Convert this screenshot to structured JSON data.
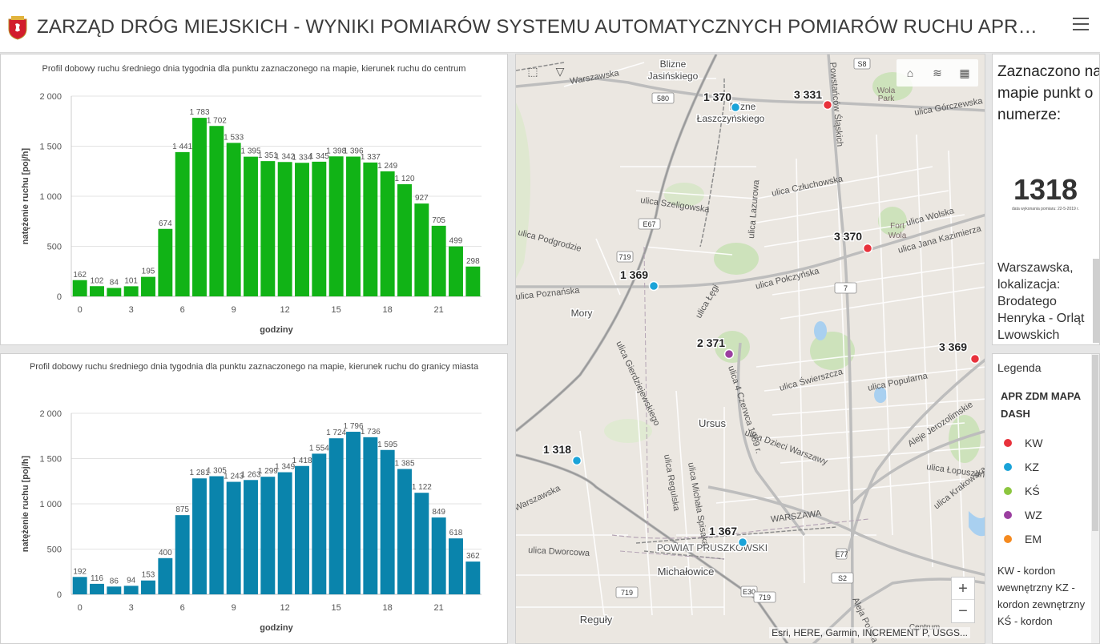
{
  "header": {
    "title": "ZARZĄD DRÓG MIEJSKICH - WYNIKI POMIARÓW SYSTEMU AUTOMATYCZNYCH POMIARÓW RUCHU APR ZDM MAPA DASH"
  },
  "colors": {
    "chart1_bar": "#11b316",
    "chart2_bar": "#0a84ac",
    "KW": "#e8323c",
    "KZ": "#1aa3d8",
    "KS": "#8cc63f",
    "WZ": "#9b3fa0",
    "EM": "#f58a1f"
  },
  "chart_data": [
    {
      "type": "bar",
      "title": "Profil dobowy ruchu średniego dnia tygodnia dla punktu zaznaczonego na mapie, kierunek ruchu do centrum",
      "xlabel": "godziny",
      "ylabel": "natężenie ruchu [poj/h]",
      "ylim": [
        0,
        2000
      ],
      "yticks": [
        0,
        500,
        1000,
        1500,
        2000
      ],
      "ytick_labels": [
        "0",
        "500",
        "1 000",
        "1 500",
        "2 000"
      ],
      "xticks": [
        "0",
        "3",
        "6",
        "9",
        "12",
        "15",
        "18",
        "21"
      ],
      "categories": [
        0,
        1,
        2,
        3,
        4,
        5,
        6,
        7,
        8,
        9,
        10,
        11,
        12,
        13,
        14,
        15,
        16,
        17,
        18,
        19,
        20,
        21,
        22,
        23
      ],
      "values": [
        162,
        102,
        84,
        101,
        195,
        674,
        1441,
        1783,
        1702,
        1533,
        1395,
        1351,
        1342,
        1334,
        1345,
        1398,
        1396,
        1337,
        1249,
        1120,
        927,
        705,
        499,
        298
      ],
      "value_labels": [
        "162",
        "102",
        "84",
        "101",
        "195",
        "674",
        "1 441",
        "1 783",
        "1 702",
        "1 533",
        "1 395",
        "1 351",
        "1 342",
        "1 334",
        "1 345",
        "1 398",
        "1 396",
        "1 337",
        "1 249",
        "1 120",
        "927",
        "705",
        "499",
        "298"
      ],
      "grid": true
    },
    {
      "type": "bar",
      "title": "Profil dobowy ruchu średniego dnia tygodnia dla punktu zaznaczonego na mapie, kierunek ruchu do granicy miasta",
      "xlabel": "godziny",
      "ylabel": "natężenie ruchu [poj/h]",
      "ylim": [
        0,
        2000
      ],
      "yticks": [
        0,
        500,
        1000,
        1500,
        2000
      ],
      "ytick_labels": [
        "0",
        "500",
        "1 000",
        "1 500",
        "2 000"
      ],
      "xticks": [
        "0",
        "3",
        "6",
        "9",
        "12",
        "15",
        "18",
        "21"
      ],
      "categories": [
        0,
        1,
        2,
        3,
        4,
        5,
        6,
        7,
        8,
        9,
        10,
        11,
        12,
        13,
        14,
        15,
        16,
        17,
        18,
        19,
        20,
        21,
        22,
        23
      ],
      "values": [
        192,
        116,
        86,
        94,
        153,
        400,
        875,
        1281,
        1305,
        1243,
        1263,
        1299,
        1349,
        1418,
        1554,
        1724,
        1796,
        1736,
        1595,
        1385,
        1122,
        849,
        618,
        362
      ],
      "value_labels": [
        "192",
        "116",
        "86",
        "94",
        "153",
        "400",
        "875",
        "1 281",
        "1 305",
        "1 243",
        "1 263",
        "1 299",
        "1 349",
        "1 418",
        "1 554",
        "1 724",
        "1 796",
        "1 736",
        "1 595",
        "1 385",
        "1 122",
        "849",
        "618",
        "362"
      ],
      "grid": true
    }
  ],
  "map": {
    "attribution": "Esri, HERE, Garmin, INCREMENT P, USGS...",
    "points": [
      {
        "label": "1 370",
        "type": "KZ"
      },
      {
        "label": "3 331",
        "type": "KW"
      },
      {
        "label": "3 370",
        "type": "KW"
      },
      {
        "label": "1 369",
        "type": "KZ"
      },
      {
        "label": "2 371",
        "type": "WZ"
      },
      {
        "label": "3 369",
        "type": "KW"
      },
      {
        "label": "1 318",
        "type": "KZ"
      },
      {
        "label": "1 367",
        "type": "KZ"
      }
    ],
    "place_labels": [
      "Blizne Jasińskiego",
      "Blizne Łaszczyńskiego",
      "Mory",
      "Ursus",
      "Michałowice",
      "Reguły",
      "Fort Wola",
      "Wola Park",
      "WARSZAWA",
      "POWIAT PRUSZKOWSKI",
      "Centrum"
    ],
    "street_labels": [
      "Warszawska",
      "ulica Szeligowska",
      "ulica Podgrodzie",
      "ulica Poznańska",
      "ulica Połczyńska",
      "ulica Człuchowska",
      "ulica Lazurowa",
      "ulica Jana Kazimierza",
      "ulica Wolska",
      "ulica Górczewska",
      "ulica Łęgi",
      "ulica Gierdziejewskiego",
      "Aleje Jerozolimskie",
      "ulica Popularna",
      "ulica Świerszcza",
      "ulica Dzieci Warszawy",
      "ulica Regulska",
      "ulica Michała Spisaka",
      "ulica Dworcowa",
      "ulica Łopuszańska",
      "ulica Krakowska",
      "ulica 4 Czerwca 1989 r.",
      "Warszawska",
      "Powstańców Śląskich",
      "Aleja Polska"
    ],
    "road_shields": [
      "S8",
      "580",
      "E67",
      "719",
      "7",
      "E77",
      "S2",
      "E30",
      "719"
    ],
    "zoom_in": "+",
    "zoom_out": "−"
  },
  "info": {
    "heading": "Zaznaczono na mapie punkt o numerze:",
    "point_number": "1318",
    "date_note": "data wykonania pomiaru: 22-5-2019 r.",
    "description": "Warszawska, lokalizacja: Brodatego Henryka - Orląt Lwowskich"
  },
  "legend": {
    "title": "Legenda",
    "layer": "APR ZDM MAPA DASH",
    "items": [
      {
        "code": "KW"
      },
      {
        "code": "KZ"
      },
      {
        "code": "KŚ"
      },
      {
        "code": "WZ"
      },
      {
        "code": "EM"
      }
    ],
    "note": "KW - kordon wewnętrzny KZ - kordon zewnętrzny KŚ - kordon"
  }
}
